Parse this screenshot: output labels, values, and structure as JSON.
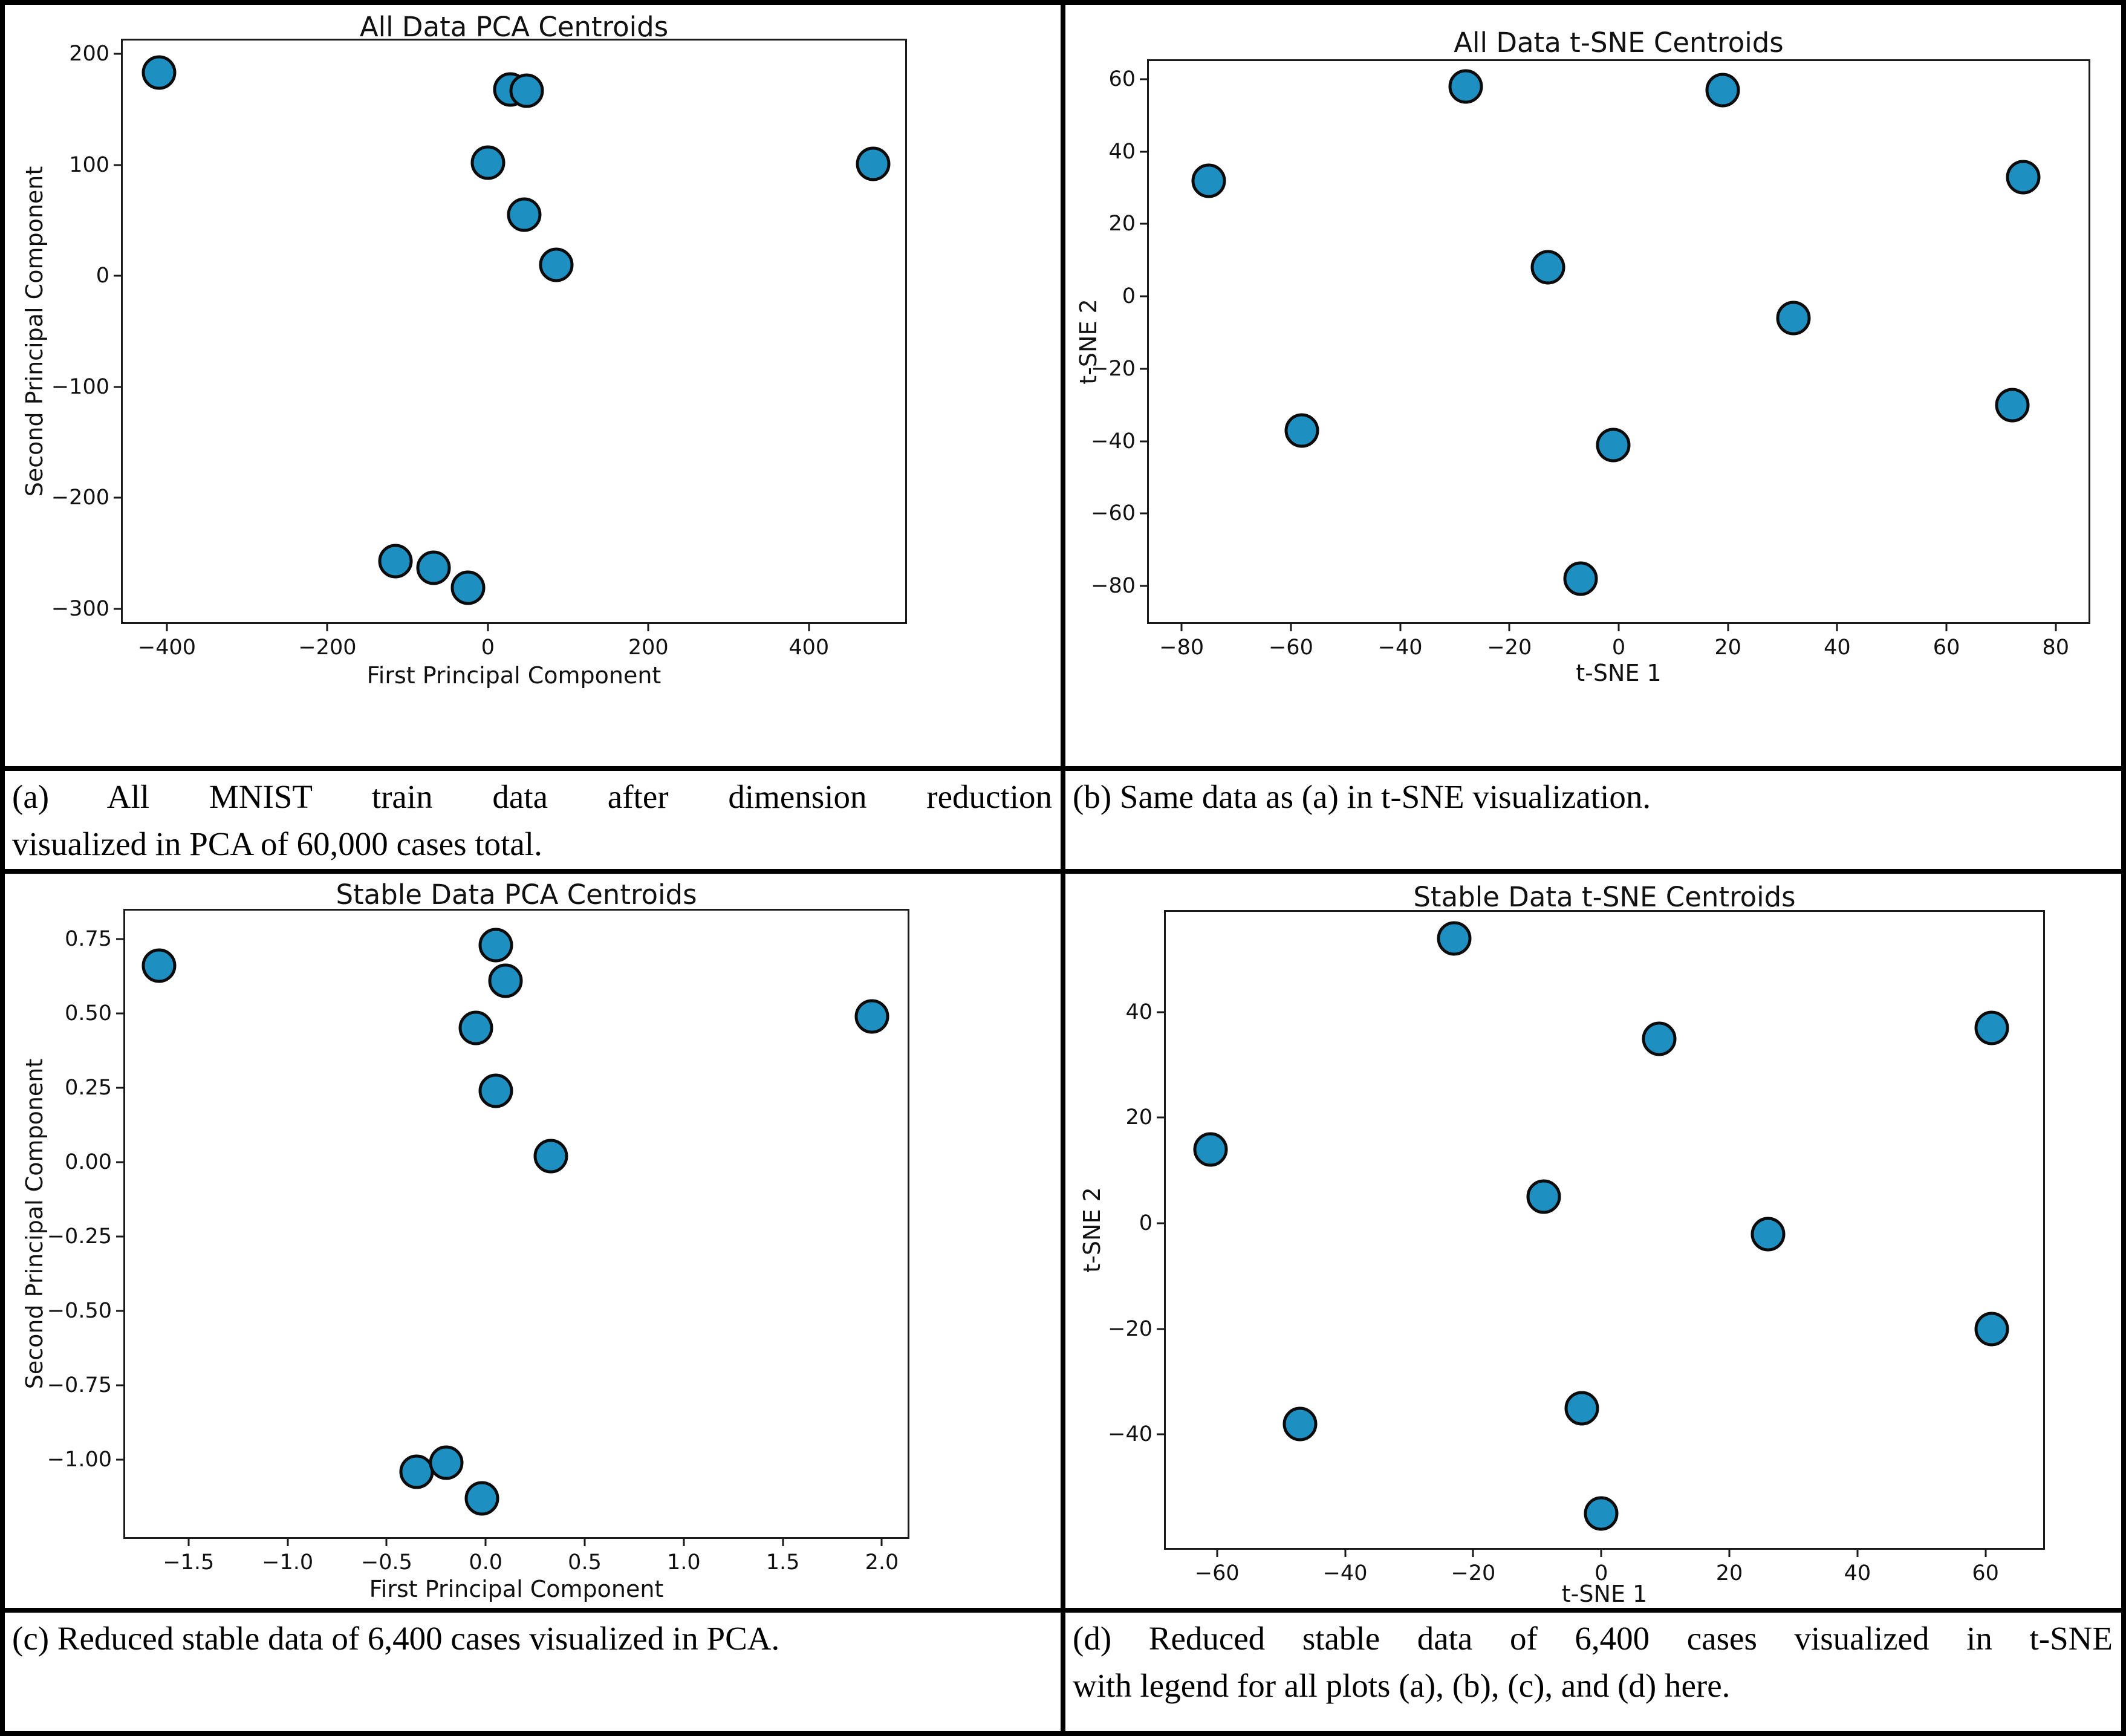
{
  "figure": {
    "dot_color": "#1e8fc1",
    "dot_edge_color": "#0b0b0b",
    "spine_color": "#1a1a1a",
    "background_color": "#ffffff",
    "border_color": "#000000"
  },
  "chart_data": [
    {
      "panel": "a",
      "type": "scatter",
      "title": "All Data PCA Centroids",
      "xlabel": "First Principal Component",
      "ylabel": "Second Principal Component",
      "xlim": [
        -455,
        520
      ],
      "ylim": [
        -312,
        212
      ],
      "xticks": {
        "values": [
          -400,
          -200,
          0,
          200,
          400
        ],
        "labels": [
          "−400",
          "−200",
          "0",
          "200",
          "400"
        ]
      },
      "yticks": {
        "values": [
          200,
          100,
          0,
          -100,
          -200,
          -300
        ],
        "labels": [
          "200",
          "100",
          "0",
          "−100",
          "−200",
          "−300"
        ]
      },
      "points": [
        [
          -410,
          183
        ],
        [
          28,
          168
        ],
        [
          48,
          167
        ],
        [
          0,
          102
        ],
        [
          480,
          101
        ],
        [
          45,
          55
        ],
        [
          85,
          10
        ],
        [
          -115,
          -257
        ],
        [
          -68,
          -263
        ],
        [
          -25,
          -281
        ]
      ],
      "legend": "none",
      "grid": false,
      "caption_lines": [
        "(a) All MNIST train data after dimension reduction",
        "visualized in PCA of 60,000 cases total."
      ]
    },
    {
      "panel": "b",
      "type": "scatter",
      "title": "All Data t-SNE Centroids",
      "xlabel": "t-SNE 1",
      "ylabel": "t-SNE 2",
      "xlim": [
        -86,
        86
      ],
      "ylim": [
        -90,
        65
      ],
      "xticks": {
        "values": [
          -80,
          -60,
          -40,
          -20,
          0,
          20,
          40,
          60,
          80
        ],
        "labels": [
          "−80",
          "−60",
          "−40",
          "−20",
          "0",
          "20",
          "40",
          "60",
          "80"
        ]
      },
      "yticks": {
        "values": [
          60,
          40,
          20,
          0,
          -20,
          -40,
          -60,
          -80
        ],
        "labels": [
          "60",
          "40",
          "20",
          "0",
          "−20",
          "−40",
          "−60",
          "−80"
        ]
      },
      "points": [
        [
          -28,
          58
        ],
        [
          19,
          57
        ],
        [
          -75,
          32
        ],
        [
          74,
          33
        ],
        [
          -13,
          8
        ],
        [
          32,
          -6
        ],
        [
          -58,
          -37
        ],
        [
          72,
          -30
        ],
        [
          -1,
          -41
        ],
        [
          -7,
          -78
        ]
      ],
      "legend": "none",
      "grid": false,
      "caption_lines": [
        "(b) Same data as (a) in t-SNE visualization."
      ]
    },
    {
      "panel": "c",
      "type": "scatter",
      "title": "Stable Data PCA Centroids",
      "xlabel": "First Principal Component",
      "ylabel": "Second Principal Component",
      "xlim": [
        -1.82,
        2.13
      ],
      "ylim": [
        -1.26,
        0.845
      ],
      "xticks": {
        "values": [
          -1.5,
          -1.0,
          -0.5,
          0.0,
          0.5,
          1.0,
          1.5,
          2.0
        ],
        "labels": [
          "−1.5",
          "−1.0",
          "−0.5",
          "0.0",
          "0.5",
          "1.0",
          "1.5",
          "2.0"
        ]
      },
      "yticks": {
        "values": [
          0.75,
          0.5,
          0.25,
          0.0,
          -0.25,
          -0.5,
          -0.75,
          -1.0
        ],
        "labels": [
          "0.75",
          "0.50",
          "0.25",
          "0.00",
          "−0.25",
          "−0.50",
          "−0.75",
          "−1.00"
        ]
      },
      "points": [
        [
          -1.65,
          0.66
        ],
        [
          0.05,
          0.73
        ],
        [
          0.1,
          0.61
        ],
        [
          -0.05,
          0.45
        ],
        [
          1.95,
          0.49
        ],
        [
          0.05,
          0.24
        ],
        [
          0.33,
          0.02
        ],
        [
          -0.35,
          -1.04
        ],
        [
          -0.2,
          -1.01
        ],
        [
          -0.02,
          -1.13
        ]
      ],
      "legend": "none",
      "grid": false,
      "caption_lines": [
        "(c) Reduced stable data of 6,400 cases visualized in PCA."
      ]
    },
    {
      "panel": "d",
      "type": "scatter",
      "title": "Stable Data t-SNE Centroids",
      "xlabel": "t-SNE 1",
      "ylabel": "t-SNE 2",
      "xlim": [
        -68,
        69
      ],
      "ylim": [
        -61.5,
        59
      ],
      "xticks": {
        "values": [
          -60,
          -40,
          -20,
          0,
          20,
          40,
          60
        ],
        "labels": [
          "−60",
          "−40",
          "−20",
          "0",
          "20",
          "40",
          "60"
        ]
      },
      "yticks": {
        "values": [
          40,
          20,
          0,
          -20,
          -40
        ],
        "labels": [
          "40",
          "20",
          "0",
          "−20",
          "−40"
        ]
      },
      "points": [
        [
          -23,
          54
        ],
        [
          9,
          35
        ],
        [
          61,
          37
        ],
        [
          -61,
          14
        ],
        [
          -9,
          5
        ],
        [
          26,
          -2
        ],
        [
          61,
          -20
        ],
        [
          -47,
          -38
        ],
        [
          -3,
          -35
        ],
        [
          0,
          -55
        ]
      ],
      "legend": "none",
      "grid": false,
      "caption_lines": [
        "(d) Reduced stable data of 6,400 cases visualized in t-SNE",
        "with legend for all plots (a), (b), (c), and (d) here."
      ]
    }
  ]
}
